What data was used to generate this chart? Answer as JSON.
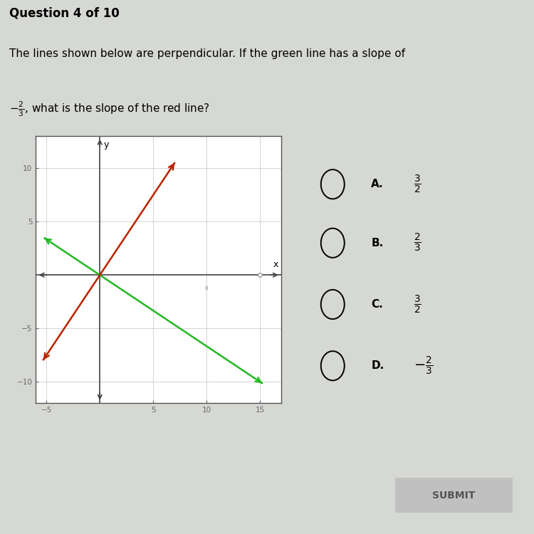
{
  "title": "Question 4 of 10",
  "question_line1": "The lines shown below are perpendicular. If the green line has a slope of",
  "question_line2_prefix": "",
  "question_line2_suffix": ", what is the slope of the red line?",
  "bg_color": "#d6d8d4",
  "plot_bg": "#ffffff",
  "graph_xlim": [
    -6,
    17
  ],
  "graph_ylim": [
    -12,
    13
  ],
  "xticks": [
    -5,
    5,
    10,
    15
  ],
  "yticks": [
    -10,
    -5,
    5,
    10
  ],
  "green_slope": -0.6667,
  "red_slope": 1.5,
  "green_color": "#22bb22",
  "red_color": "#bb2200",
  "axis_color": "#444444",
  "choice_labels": [
    "A.",
    "B.",
    "C.",
    "D."
  ],
  "choice_fractions": [
    {
      "num": "3",
      "den": "2",
      "sign": ""
    },
    {
      "num": "2",
      "den": "3",
      "sign": ""
    },
    {
      "num": "3",
      "den": "2",
      "sign": ""
    },
    {
      "num": "2",
      "den": "3",
      "sign": "-"
    }
  ],
  "submit_text": "SUBMIT",
  "submit_bg": "#c0c0c0",
  "submit_text_color": "#555555",
  "graph_border_color": "#555555",
  "tick_color": "#666666",
  "grid_color": "#cccccc"
}
